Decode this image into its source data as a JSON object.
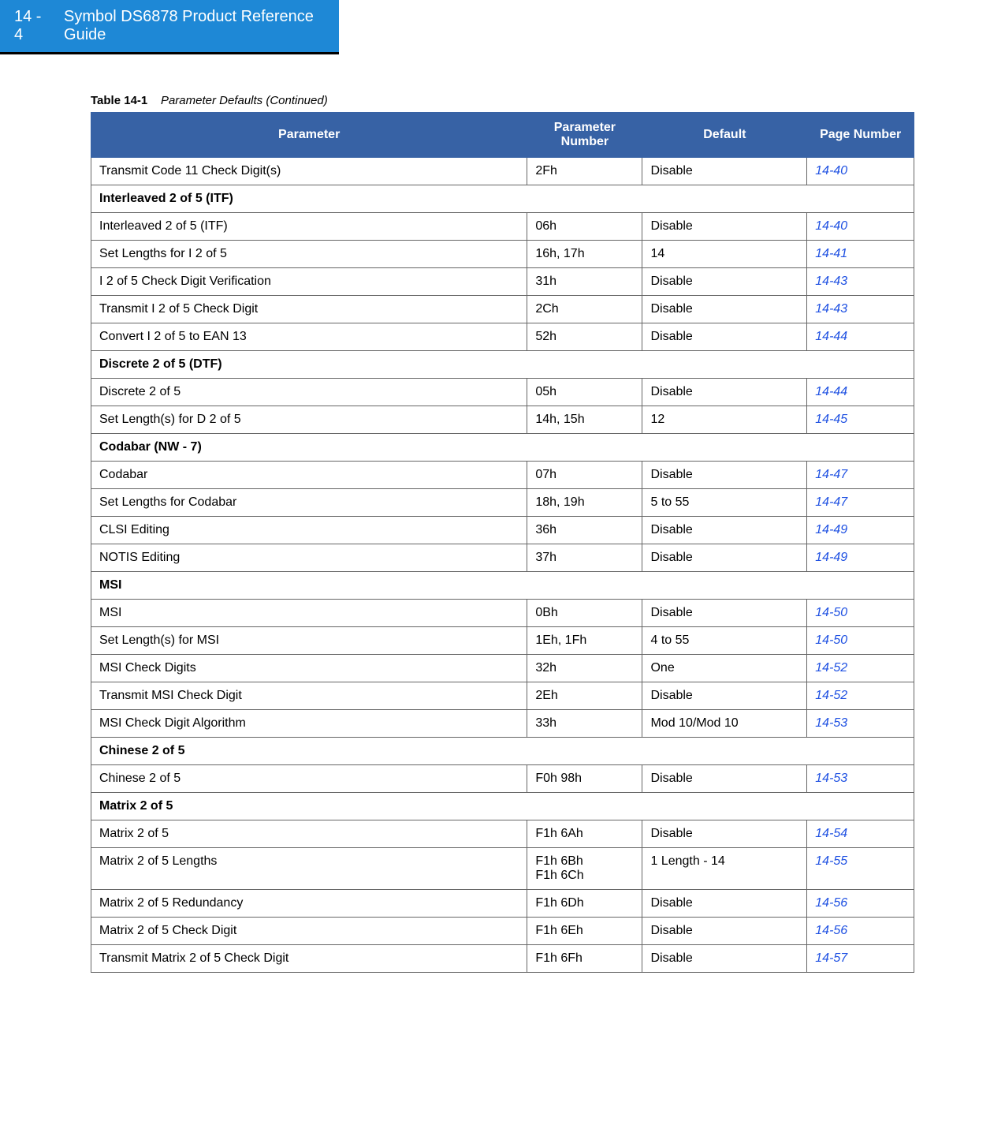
{
  "header": {
    "page_number": "14 - 4",
    "title": "Symbol DS6878 Product Reference Guide"
  },
  "caption": {
    "label": "Table 14-1",
    "title": "Parameter Defaults (Continued)"
  },
  "columns": {
    "parameter": "Parameter",
    "number": "Parameter Number",
    "default": "Default",
    "page": "Page Number"
  },
  "rows": [
    {
      "type": "data",
      "parameter": "Transmit Code 11 Check Digit(s)",
      "number": "2Fh",
      "default": "Disable",
      "page": "14-40"
    },
    {
      "type": "section",
      "parameter": "Interleaved 2 of 5 (ITF)"
    },
    {
      "type": "data",
      "parameter": "Interleaved 2 of 5 (ITF)",
      "number": "06h",
      "default": "Disable",
      "page": "14-40"
    },
    {
      "type": "data",
      "parameter": "Set Lengths for I 2 of 5",
      "number": "16h, 17h",
      "default": "14",
      "page": "14-41"
    },
    {
      "type": "data",
      "parameter": "I 2 of 5 Check Digit Verification",
      "number": "31h",
      "default": "Disable",
      "page": "14-43"
    },
    {
      "type": "data",
      "parameter": "Transmit I 2 of 5 Check Digit",
      "number": "2Ch",
      "default": "Disable",
      "page": "14-43"
    },
    {
      "type": "data",
      "parameter": "Convert I 2 of 5 to EAN 13",
      "number": "52h",
      "default": "Disable",
      "page": "14-44"
    },
    {
      "type": "section",
      "parameter": "Discrete 2 of 5 (DTF)"
    },
    {
      "type": "data",
      "parameter": "Discrete 2 of 5",
      "number": "05h",
      "default": "Disable",
      "page": "14-44"
    },
    {
      "type": "data",
      "parameter": "Set Length(s) for D 2 of 5",
      "number": "14h, 15h",
      "default": "12",
      "page": "14-45"
    },
    {
      "type": "section",
      "parameter": "Codabar (NW - 7)"
    },
    {
      "type": "data",
      "parameter": "Codabar",
      "number": "07h",
      "default": "Disable",
      "page": "14-47"
    },
    {
      "type": "data",
      "parameter": "Set Lengths for Codabar",
      "number": "18h, 19h",
      "default": "5 to 55",
      "page": "14-47"
    },
    {
      "type": "data",
      "parameter": "CLSI Editing",
      "number": "36h",
      "default": "Disable",
      "page": "14-49"
    },
    {
      "type": "data",
      "parameter": "NOTIS Editing",
      "number": "37h",
      "default": "Disable",
      "page": "14-49"
    },
    {
      "type": "section",
      "parameter": "MSI"
    },
    {
      "type": "data",
      "parameter": "MSI",
      "number": "0Bh",
      "default": "Disable",
      "page": "14-50"
    },
    {
      "type": "data",
      "parameter": "Set Length(s) for MSI",
      "number": "1Eh, 1Fh",
      "default": "4 to 55",
      "page": "14-50"
    },
    {
      "type": "data",
      "parameter": "MSI Check Digits",
      "number": "32h",
      "default": "One",
      "page": "14-52"
    },
    {
      "type": "data",
      "parameter": "Transmit MSI Check Digit",
      "number": "2Eh",
      "default": "Disable",
      "page": "14-52"
    },
    {
      "type": "data",
      "parameter": "MSI Check Digit Algorithm",
      "number": "33h",
      "default": "Mod 10/Mod 10",
      "page": "14-53"
    },
    {
      "type": "section",
      "parameter": "Chinese 2 of 5"
    },
    {
      "type": "data",
      "parameter": "Chinese 2 of 5",
      "number": "F0h 98h",
      "default": "Disable",
      "page": "14-53"
    },
    {
      "type": "section",
      "parameter": "Matrix 2 of 5"
    },
    {
      "type": "data",
      "parameter": "Matrix 2 of 5",
      "number": "F1h 6Ah",
      "default": "Disable",
      "page": "14-54"
    },
    {
      "type": "data",
      "parameter": "Matrix 2 of 5 Lengths",
      "number": "F1h 6Bh\nF1h 6Ch",
      "default": "1 Length - 14",
      "page": "14-55"
    },
    {
      "type": "data",
      "parameter": "Matrix 2 of 5 Redundancy",
      "number": "F1h 6Dh",
      "default": "Disable",
      "page": "14-56"
    },
    {
      "type": "data",
      "parameter": "Matrix 2 of 5 Check Digit",
      "number": "F1h 6Eh",
      "default": "Disable",
      "page": "14-56"
    },
    {
      "type": "data",
      "parameter": "Transmit Matrix 2 of 5 Check Digit",
      "number": "F1h 6Fh",
      "default": "Disable",
      "page": "14-57"
    }
  ],
  "style": {
    "header_bg": "#1e88d6",
    "th_bg": "#3762a5",
    "link_color": "#1e50e2",
    "border_color": "#666666"
  }
}
